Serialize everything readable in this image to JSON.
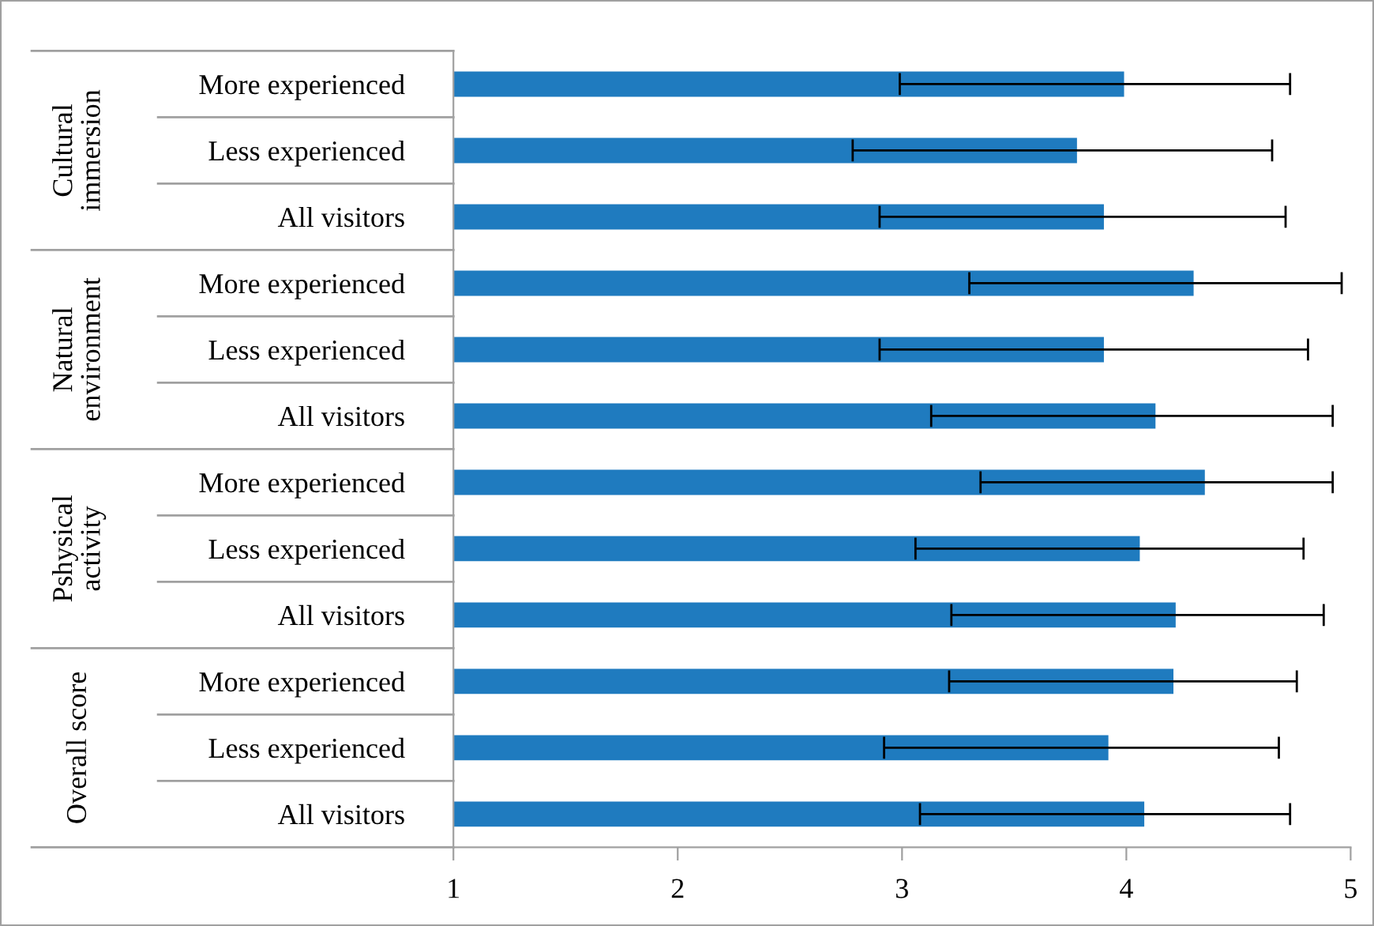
{
  "chart_data": {
    "type": "bar",
    "orientation": "horizontal",
    "categories": [
      "More experienced",
      "Less experienced",
      "All visitors",
      "More experienced",
      "Less experienced",
      "All visitors",
      "More experienced",
      "Less experienced",
      "All visitors",
      "More experienced",
      "Less experienced",
      "All visitors"
    ],
    "series": [
      {
        "color": "#1f7bbf",
        "values": [
          3.99,
          3.78,
          3.9,
          4.3,
          3.9,
          4.13,
          4.35,
          4.06,
          4.22,
          4.21,
          3.92,
          4.08
        ],
        "errors": [
          [
            2.99,
            4.73
          ],
          [
            2.78,
            4.65
          ],
          [
            2.9,
            4.71
          ],
          [
            3.3,
            4.96
          ],
          [
            2.9,
            4.81
          ],
          [
            3.13,
            4.92
          ],
          [
            3.35,
            4.92
          ],
          [
            3.06,
            4.79
          ],
          [
            3.22,
            4.88
          ],
          [
            3.21,
            4.76
          ],
          [
            2.92,
            4.68
          ],
          [
            3.08,
            4.73
          ]
        ]
      }
    ],
    "annotations": [
      "Cultural\nimmersion",
      "Natural\nenvironment",
      "Pshysical\nactivity",
      "Overall score"
    ],
    "xlim": [
      1,
      5
    ],
    "xticks": [
      1,
      2,
      3,
      4,
      5
    ],
    "grid": false,
    "legend": false
  }
}
